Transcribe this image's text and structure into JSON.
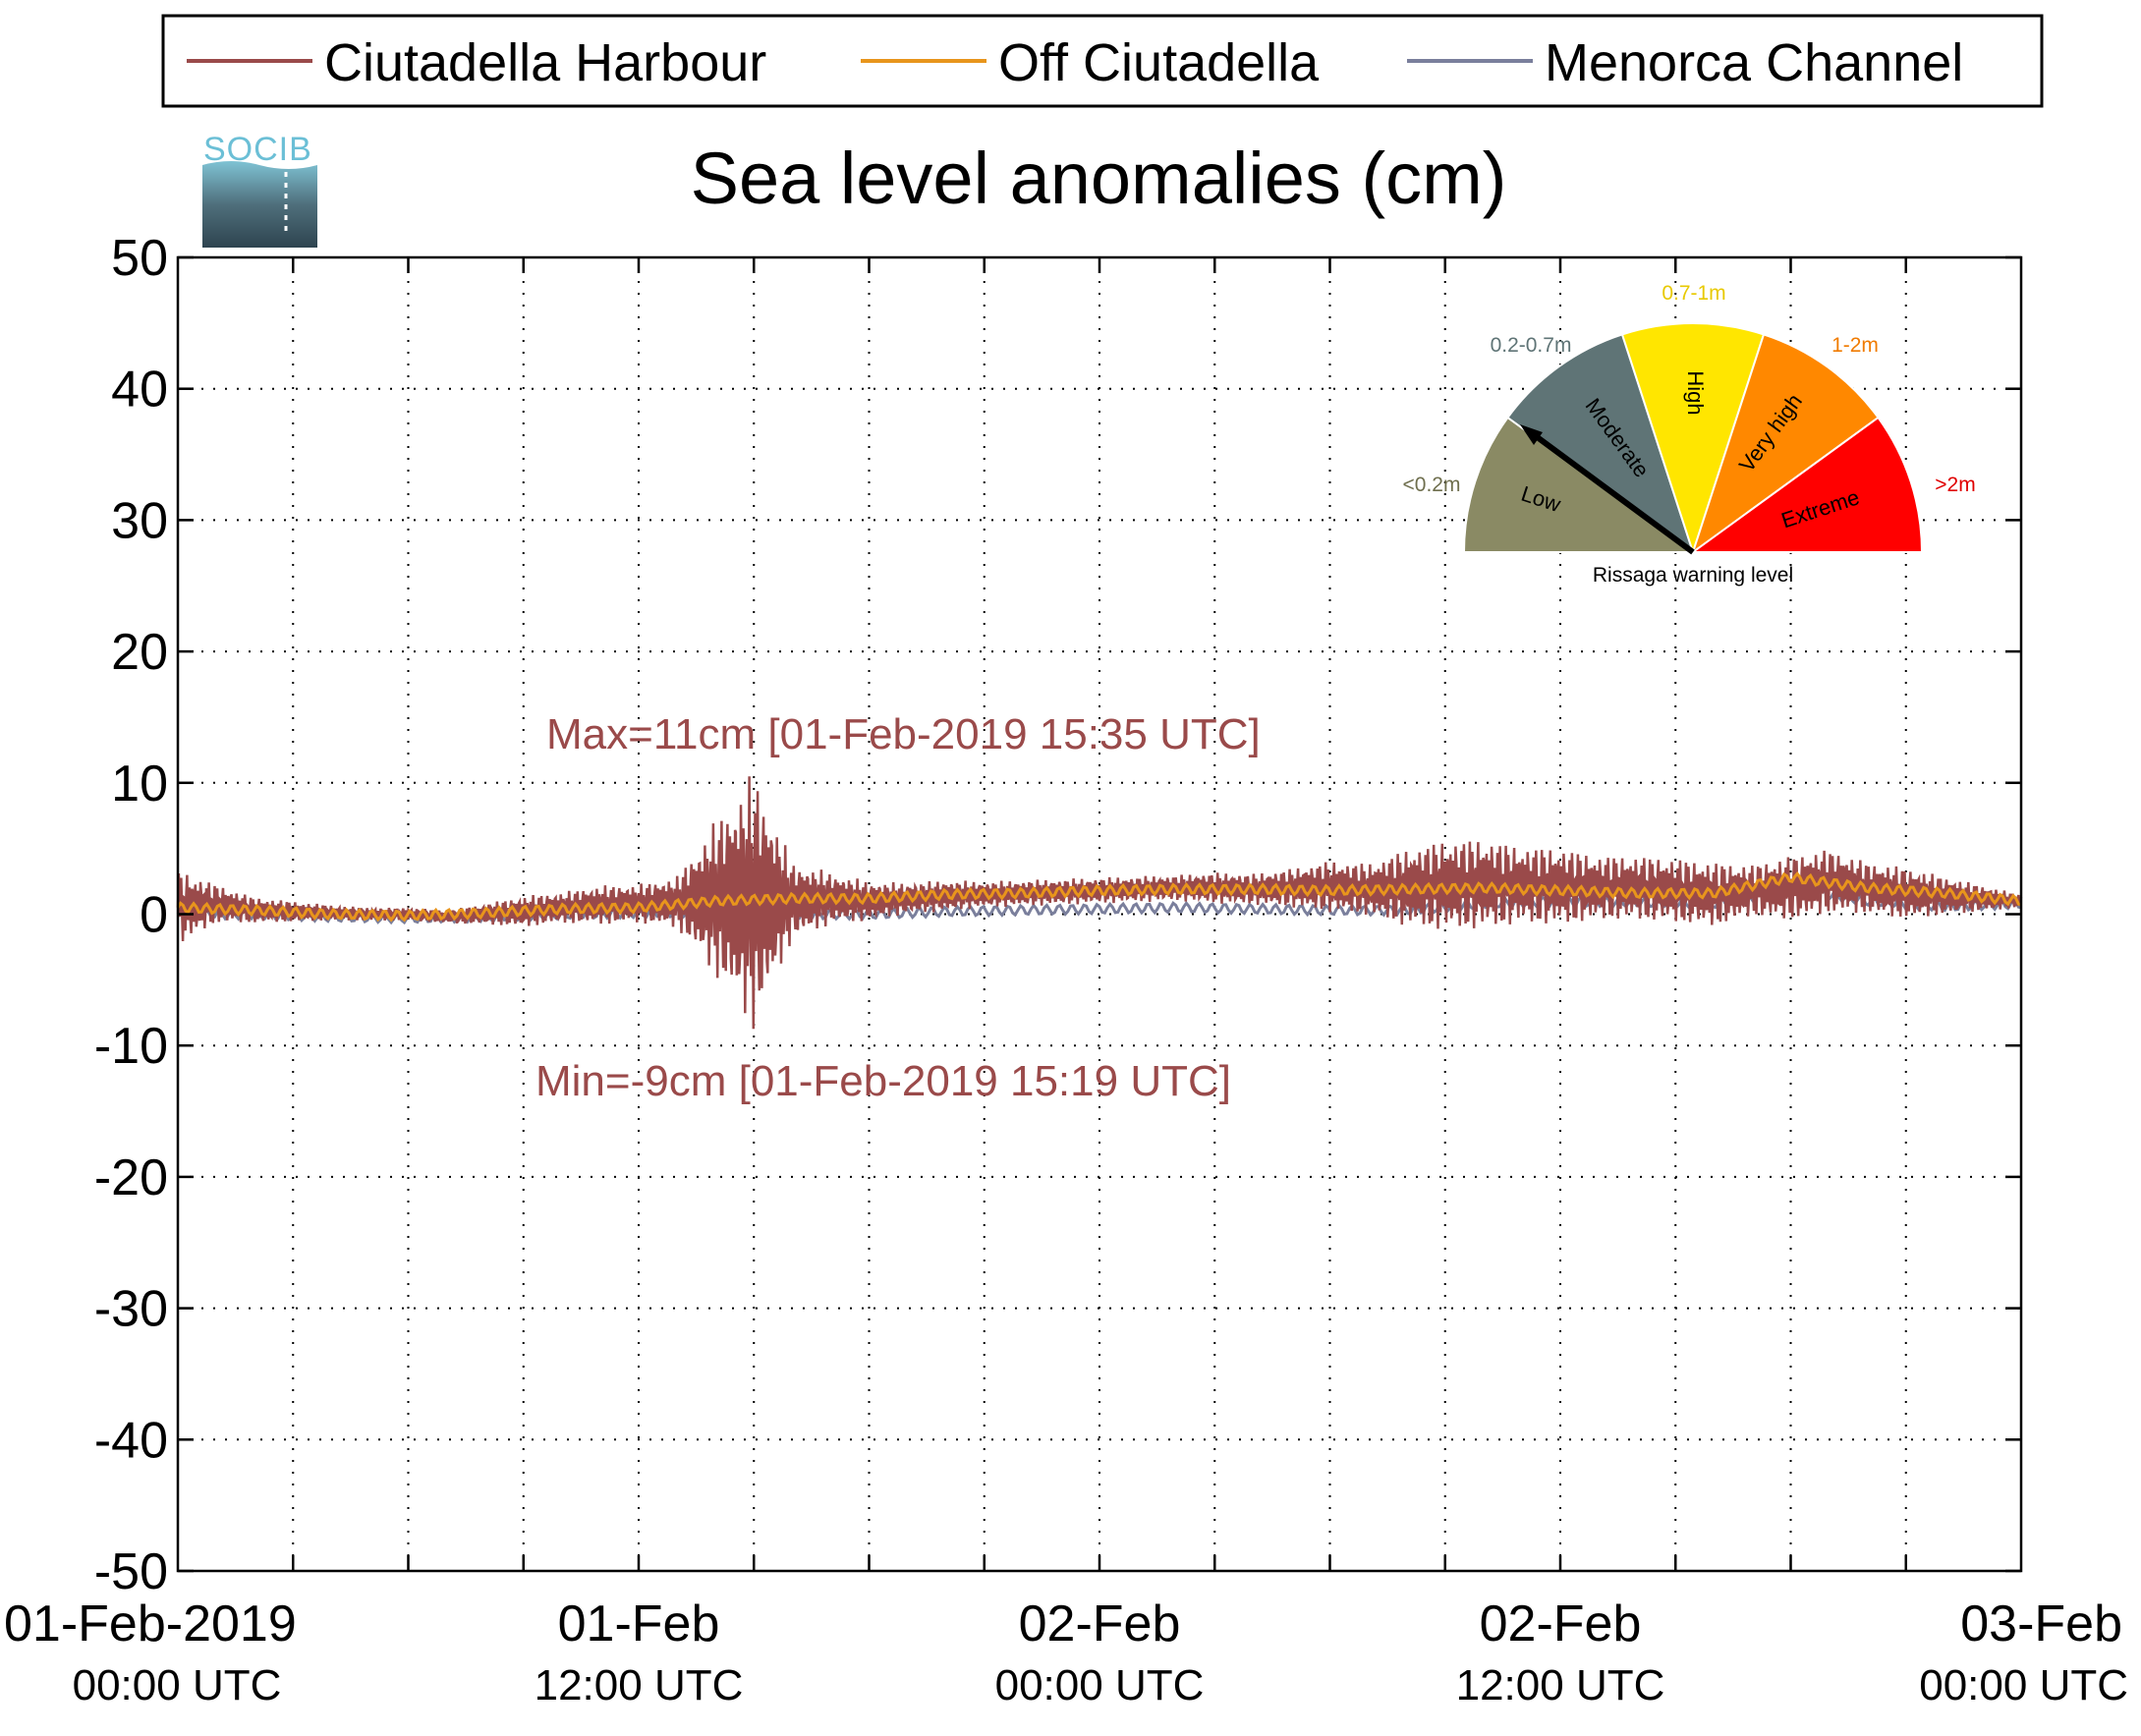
{
  "logo": {
    "text": "SOCIB"
  },
  "legend": {
    "items": [
      {
        "label": "Ciutadella Harbour",
        "color": "#9a4a4a"
      },
      {
        "label": "Off Ciutadella",
        "color": "#e8951c"
      },
      {
        "label": "Menorca Channel",
        "color": "#7a7f9c"
      }
    ]
  },
  "chart_data": {
    "type": "line",
    "title": "Sea level anomalies (cm)",
    "xlabel": "",
    "ylabel": "",
    "ylim": [
      -50,
      50
    ],
    "xlim": [
      "2019-02-01 00:00",
      "2019-02-03 00:00"
    ],
    "y_ticks": [
      "50",
      "40",
      "30",
      "20",
      "10",
      "0",
      "-10",
      "-20",
      "-30",
      "-40",
      "-50"
    ],
    "x_tick_labels": [
      {
        "date": "01-Feb-2019",
        "time": "00:00 UTC"
      },
      {
        "date": "01-Feb",
        "time": "12:00 UTC"
      },
      {
        "date": "02-Feb",
        "time": "00:00 UTC"
      },
      {
        "date": "02-Feb",
        "time": "12:00 UTC"
      },
      {
        "date": "03-Feb",
        "time": "00:00 UTC"
      }
    ],
    "grid": true,
    "legend_position": "top",
    "series": [
      {
        "name": "Ciutadella Harbour",
        "color": "#9a4a4a",
        "times": [
          "2019-02-01 00:00",
          "2019-02-01 01:00",
          "2019-02-01 02:00",
          "2019-02-01 03:00",
          "2019-02-01 04:00",
          "2019-02-01 05:00",
          "2019-02-01 06:00",
          "2019-02-01 07:00",
          "2019-02-01 08:00",
          "2019-02-01 09:00",
          "2019-02-01 10:00",
          "2019-02-01 11:00",
          "2019-02-01 12:00",
          "2019-02-01 13:00",
          "2019-02-01 14:00",
          "2019-02-01 15:00",
          "2019-02-01 16:00",
          "2019-02-01 17:00",
          "2019-02-01 18:00",
          "2019-02-01 19:00",
          "2019-02-01 20:00",
          "2019-02-01 21:00",
          "2019-02-01 22:00",
          "2019-02-01 23:00",
          "2019-02-02 00:00",
          "2019-02-02 01:00",
          "2019-02-02 02:00",
          "2019-02-02 03:00",
          "2019-02-02 04:00",
          "2019-02-02 05:00",
          "2019-02-02 06:00",
          "2019-02-02 07:00",
          "2019-02-02 08:00",
          "2019-02-02 09:00",
          "2019-02-02 10:00",
          "2019-02-02 11:00",
          "2019-02-02 12:00",
          "2019-02-02 13:00",
          "2019-02-02 14:00",
          "2019-02-02 15:00",
          "2019-02-02 16:00",
          "2019-02-02 17:00",
          "2019-02-02 18:00",
          "2019-02-02 19:00",
          "2019-02-02 20:00",
          "2019-02-02 21:00",
          "2019-02-02 22:00",
          "2019-02-02 23:00",
          "2019-02-03 00:00"
        ],
        "center": [
          0.5,
          0.8,
          0.3,
          0.2,
          0.1,
          0.0,
          0.0,
          -0.2,
          0.0,
          0.2,
          0.5,
          0.7,
          0.8,
          0.9,
          1.2,
          1.0,
          1.0,
          1.2,
          1.0,
          1.2,
          1.4,
          1.5,
          1.6,
          1.7,
          1.8,
          1.9,
          2.0,
          2.0,
          1.9,
          2.0,
          2.1,
          1.9,
          2.0,
          2.2,
          2.3,
          2.2,
          2.1,
          2.0,
          2.0,
          1.8,
          1.5,
          1.8,
          2.0,
          2.5,
          2.0,
          1.6,
          1.4,
          1.2,
          1.0
        ],
        "amplitude": [
          3.0,
          1.5,
          1.0,
          0.8,
          0.6,
          0.5,
          0.5,
          0.5,
          0.8,
          1.2,
          1.2,
          1.5,
          1.5,
          2.0,
          6.0,
          10.0,
          3.0,
          2.0,
          1.5,
          1.2,
          1.2,
          1.0,
          1.0,
          1.0,
          1.0,
          1.0,
          1.0,
          1.2,
          1.2,
          1.5,
          2.0,
          2.0,
          3.0,
          3.5,
          3.5,
          3.0,
          3.0,
          2.5,
          2.5,
          2.5,
          2.5,
          2.0,
          2.5,
          2.5,
          2.0,
          2.0,
          1.5,
          1.0,
          0.5
        ]
      },
      {
        "name": "Off Ciutadella",
        "color": "#e8951c",
        "times": [
          "2019-02-01 00:00",
          "2019-02-01 02:00",
          "2019-02-01 04:00",
          "2019-02-01 06:00",
          "2019-02-01 08:00",
          "2019-02-01 10:00",
          "2019-02-01 12:00",
          "2019-02-01 14:00",
          "2019-02-01 16:00",
          "2019-02-01 18:00",
          "2019-02-01 20:00",
          "2019-02-01 22:00",
          "2019-02-02 00:00",
          "2019-02-02 02:00",
          "2019-02-02 04:00",
          "2019-02-02 06:00",
          "2019-02-02 08:00",
          "2019-02-02 10:00",
          "2019-02-02 12:00",
          "2019-02-02 14:00",
          "2019-02-02 16:00",
          "2019-02-02 18:00",
          "2019-02-02 20:00",
          "2019-02-02 22:00",
          "2019-02-03 00:00"
        ],
        "values": [
          0.5,
          0.3,
          0.0,
          -0.1,
          0.1,
          0.4,
          0.5,
          1.0,
          1.2,
          1.2,
          1.5,
          1.6,
          1.8,
          1.9,
          1.9,
          1.8,
          1.9,
          2.0,
          1.8,
          1.6,
          1.6,
          2.8,
          2.0,
          1.6,
          1.0
        ]
      },
      {
        "name": "Menorca Channel",
        "color": "#7a7f9c",
        "times": [
          "2019-02-01 00:00",
          "2019-02-01 02:00",
          "2019-02-01 04:00",
          "2019-02-01 06:00",
          "2019-02-01 08:00",
          "2019-02-01 10:00",
          "2019-02-01 12:00",
          "2019-02-01 14:00",
          "2019-02-01 16:00",
          "2019-02-01 18:00",
          "2019-02-01 20:00",
          "2019-02-01 22:00",
          "2019-02-02 00:00",
          "2019-02-02 02:00",
          "2019-02-02 04:00",
          "2019-02-02 06:00",
          "2019-02-02 08:00",
          "2019-02-02 10:00",
          "2019-02-02 12:00",
          "2019-02-02 14:00",
          "2019-02-02 16:00",
          "2019-02-02 18:00",
          "2019-02-02 20:00",
          "2019-02-02 22:00",
          "2019-02-03 00:00"
        ],
        "values": [
          0.0,
          0.0,
          -0.2,
          -0.3,
          -0.2,
          0.0,
          0.1,
          0.2,
          0.0,
          0.0,
          0.2,
          0.3,
          0.4,
          0.5,
          0.4,
          0.3,
          0.3,
          0.8,
          1.0,
          0.9,
          0.8,
          2.0,
          1.0,
          0.6,
          0.8
        ]
      }
    ],
    "annotations": [
      {
        "text": "Max=11cm [01-Feb-2019 15:35 UTC]",
        "x": "2019-02-01 15:35",
        "y": 11
      },
      {
        "text": "Min=-9cm [01-Feb-2019 15:19 UTC]",
        "x": "2019-02-01 15:19",
        "y": -9
      }
    ]
  },
  "gauge": {
    "caption": "Rissaga warning level",
    "needle_level": "Moderate",
    "segments": [
      {
        "name": "Low",
        "range": "<0.2m",
        "color": "#8a8a64",
        "label_color": "#6f6f4e"
      },
      {
        "name": "Moderate",
        "range": "0.2-0.7m",
        "color": "#5f7476",
        "label_color": "#5f7476"
      },
      {
        "name": "High",
        "range": "0.7-1m",
        "color": "#ffe600",
        "label_color": "#e8c900"
      },
      {
        "name": "Very high",
        "range": "1-2m",
        "color": "#ff8800",
        "label_color": "#f07b00"
      },
      {
        "name": "Extreme",
        "range": ">2m",
        "color": "#ff0000",
        "label_color": "#e00000"
      }
    ]
  }
}
